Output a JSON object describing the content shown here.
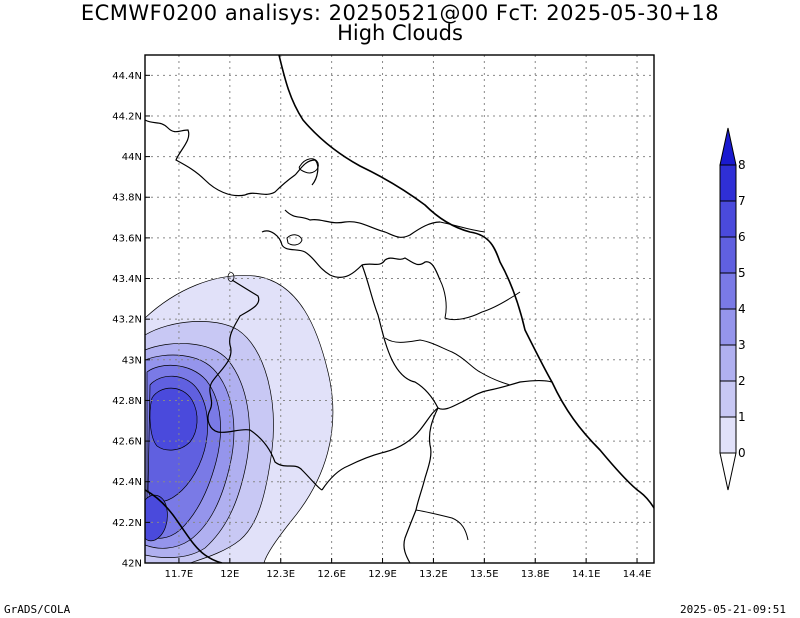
{
  "title": {
    "line1": "ECMWF0200 analisys: 20250521@00 FcT: 2025-05-30+18",
    "line2": "High Clouds"
  },
  "footer": {
    "left": "GrADS/COLA",
    "right": "2025-05-21-09:51"
  },
  "map": {
    "lon_range": [
      11.5,
      14.5
    ],
    "lat_range": [
      42.0,
      44.5
    ],
    "grid": true,
    "lon_ticks": [
      "11.7E",
      "12E",
      "12.3E",
      "12.6E",
      "12.9E",
      "13.2E",
      "13.5E",
      "13.8E",
      "14.1E",
      "14.4E"
    ],
    "lat_ticks": [
      "42N",
      "42.2N",
      "42.4N",
      "42.6N",
      "42.8N",
      "43N",
      "43.2N",
      "43.4N",
      "43.6N",
      "43.8N",
      "44N",
      "44.2N",
      "44.4N"
    ]
  },
  "colorbar": {
    "labels": [
      "0",
      "1",
      "2",
      "3",
      "4",
      "5",
      "6",
      "7",
      "8"
    ],
    "colors": [
      "#ffffff",
      "#e1e1f9",
      "#c8c8f4",
      "#b0b0f0",
      "#9595ec",
      "#7a7ae6",
      "#6060e0",
      "#4a4adc",
      "#2f2fd6",
      "#1a1ad0"
    ]
  },
  "contour_label": "0"
}
